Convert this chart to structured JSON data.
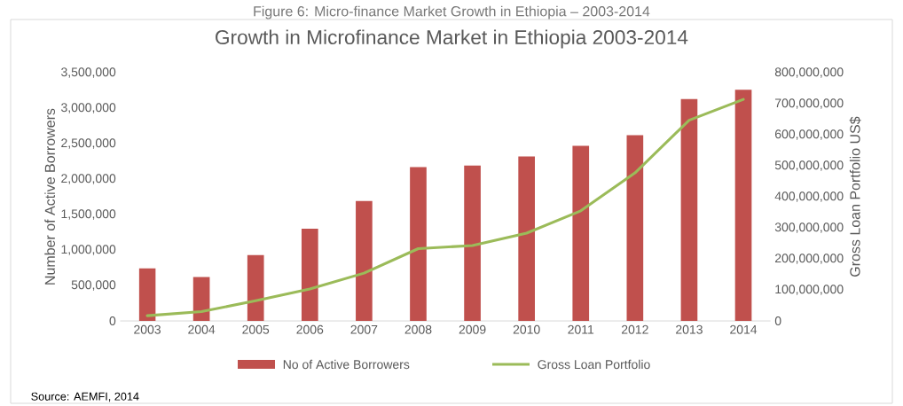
{
  "chart_data": {
    "type": "bar",
    "title": "Growth in Microfinance Market in Ethiopia 2003-2014",
    "categories": [
      "2003",
      "2004",
      "2005",
      "2006",
      "2007",
      "2008",
      "2009",
      "2010",
      "2011",
      "2012",
      "2013",
      "2014"
    ],
    "ylabel": "Number of Active Borrowers",
    "y2label": "Gross Loan Portfolio US$",
    "series": [
      {
        "name": "No of Active Borrowers",
        "color": "#c0504d",
        "values": [
          740000,
          620000,
          930000,
          1300000,
          1690000,
          2170000,
          2190000,
          2320000,
          2470000,
          2620000,
          3130000,
          3260000
        ]
      },
      {
        "name": "Gross Loan Portfolio",
        "type": "line",
        "axis": "y2",
        "color": "#9bbb59",
        "values": [
          17000000,
          30000000,
          65000000,
          103000000,
          154000000,
          233000000,
          243000000,
          283000000,
          355000000,
          477000000,
          647000000,
          714000000
        ]
      }
    ],
    "ylim": [
      0,
      3500000
    ],
    "yticks": [
      0,
      {
        "value": 500000,
        "label": "500,000"
      },
      {
        "value": 1000000,
        "label": "1,000,000"
      },
      {
        "value": 1500000,
        "label": "1,500,000"
      },
      {
        "value": 2000000,
        "label": "2,000,000"
      },
      {
        "value": 2500000,
        "label": "2,500,000"
      },
      {
        "value": 3000000,
        "label": "3,000,000"
      },
      {
        "value": 3500000,
        "label": "3,500,000"
      }
    ],
    "y2lim": [
      0,
      800000000
    ],
    "y2ticks": [
      0,
      {
        "value": 100000000,
        "label": "100,000,000"
      },
      {
        "value": 200000000,
        "label": "200,000,000"
      },
      {
        "value": 300000000,
        "label": "300,000,000"
      },
      {
        "value": 400000000,
        "label": "400,000,000"
      },
      {
        "value": 500000000,
        "label": "500,000,000"
      },
      {
        "value": 600000000,
        "label": "600,000,000"
      },
      {
        "value": 700000000,
        "label": "700,000,000"
      },
      {
        "value": 800000000,
        "label": "800,000,000"
      }
    ],
    "legend": "bottom",
    "annotations": [
      "Figure 6: Micro-finance Market Growth in Ethiopia – 2003-2014",
      "Source: AEMFI, 2014"
    ]
  }
}
